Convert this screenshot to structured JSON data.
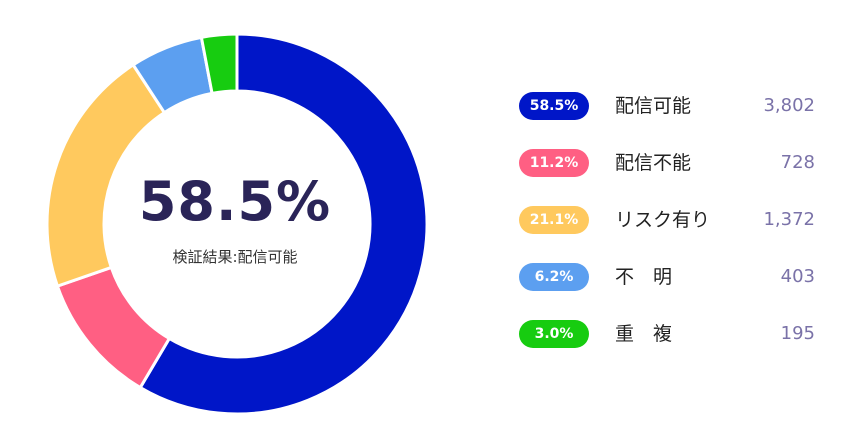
{
  "chart_data": {
    "type": "pie",
    "variant": "donut",
    "center_value": "58.5%",
    "center_label": "検証結果:配信可能",
    "slices": [
      {
        "label": "配信可能",
        "percent_label": "58.5%",
        "percent": 58.5,
        "count": "3,802",
        "color": "#0016c8"
      },
      {
        "label": "配信不能",
        "percent_label": "11.2%",
        "percent": 11.2,
        "count": "728",
        "color": "#ff5f83"
      },
      {
        "label": "リスク有り",
        "percent_label": "21.1%",
        "percent": 21.1,
        "count": "1,372",
        "color": "#ffc95e"
      },
      {
        "label": "不　明",
        "percent_label": "6.2%",
        "percent": 6.2,
        "count": "403",
        "color": "#5c9ff0"
      },
      {
        "label": "重　複",
        "percent_label": "3.0%",
        "percent": 3.0,
        "count": "195",
        "color": "#17cc10"
      }
    ]
  }
}
